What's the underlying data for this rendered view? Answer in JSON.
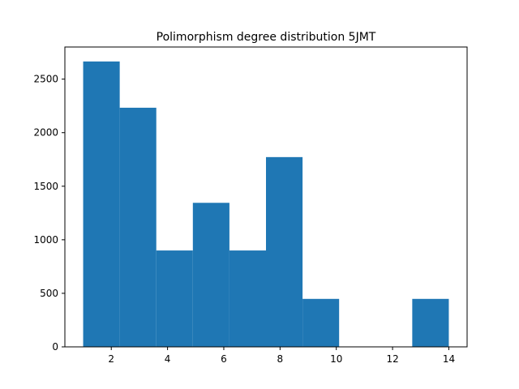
{
  "chart_data": {
    "type": "bar",
    "title": "Polimorphism degree distribution 5JMT",
    "xlabel": "",
    "ylabel": "",
    "bins": [
      {
        "x0": 1.0,
        "x1": 2.3,
        "value": 2665
      },
      {
        "x0": 2.3,
        "x1": 3.6,
        "value": 2233
      },
      {
        "x0": 3.6,
        "x1": 4.9,
        "value": 900
      },
      {
        "x0": 4.9,
        "x1": 6.2,
        "value": 1345
      },
      {
        "x0": 6.2,
        "x1": 7.5,
        "value": 900
      },
      {
        "x0": 7.5,
        "x1": 8.8,
        "value": 1772
      },
      {
        "x0": 8.8,
        "x1": 10.1,
        "value": 448
      },
      {
        "x0": 10.1,
        "x1": 11.4,
        "value": 0
      },
      {
        "x0": 11.4,
        "x1": 12.7,
        "value": 0
      },
      {
        "x0": 12.7,
        "x1": 14.0,
        "value": 448
      }
    ],
    "xlim": [
      0.35,
      14.65
    ],
    "ylim": [
      0,
      2800
    ],
    "x_ticks": [
      2,
      4,
      6,
      8,
      10,
      12,
      14
    ],
    "y_ticks": [
      0,
      500,
      1000,
      1500,
      2000,
      2500
    ],
    "bar_color": "#1f77b4",
    "grid": false,
    "legend": "none"
  }
}
